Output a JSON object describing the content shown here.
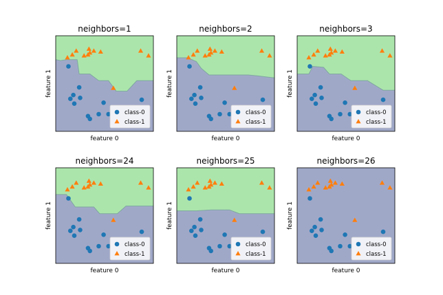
{
  "colors": {
    "class0_region": "#a0a8c8",
    "class1_region": "#ace5ac",
    "class0_marker": "#1f77b4",
    "class1_marker": "#ff7f0e",
    "boundary": "#7fa8a0",
    "axes_edge": "#000000"
  },
  "legend": {
    "class0_label": "class-0",
    "class1_label": "class-1"
  },
  "chart_data": [
    {
      "type": "scatter",
      "title": "neighbors=1",
      "xlabel": "feature 0",
      "ylabel": "feature 1",
      "xlim": [
        0,
        10
      ],
      "ylim": [
        0,
        10
      ],
      "boundary": [
        [
          0,
          7.5
        ],
        [
          0.5,
          7.4
        ],
        [
          1.1,
          7.5
        ],
        [
          2.2,
          7.5
        ],
        [
          2.4,
          6.0
        ],
        [
          3.5,
          6.0
        ],
        [
          4.4,
          5.3
        ],
        [
          5.4,
          5.3
        ],
        [
          6.2,
          4.2
        ],
        [
          7.3,
          4.2
        ],
        [
          8.3,
          5.3
        ],
        [
          10,
          5.3
        ]
      ],
      "series": [
        {
          "name": "class-0",
          "x": [
            1.3,
            1.5,
            1.8,
            1.9,
            2.4,
            2.5,
            3.3,
            3.5,
            4.4,
            4.9,
            5.4,
            8.8
          ],
          "y": [
            6.8,
            3.4,
            3.8,
            2.9,
            4.6,
            3.5,
            1.6,
            1.3,
            1.8,
            3.0,
            1.8,
            3.3
          ]
        },
        {
          "name": "class-1",
          "x": [
            1.2,
            1.7,
            2.1,
            2.9,
            3.3,
            3.4,
            3.5,
            3.9,
            4.6,
            5.9,
            8.7,
            9.5
          ],
          "y": [
            7.7,
            8.0,
            8.4,
            7.9,
            8.0,
            8.6,
            8.2,
            8.4,
            8.3,
            4.5,
            8.4,
            7.9
          ]
        }
      ]
    },
    {
      "type": "scatter",
      "title": "neighbors=2",
      "xlabel": "feature 0",
      "ylabel": "feature 1",
      "xlim": [
        0,
        10
      ],
      "ylim": [
        0,
        10
      ],
      "boundary": [
        [
          0,
          7.7
        ],
        [
          1.1,
          7.7
        ],
        [
          2.0,
          7.3
        ],
        [
          2.5,
          6.6
        ],
        [
          3.3,
          5.9
        ],
        [
          7.3,
          5.9
        ],
        [
          8.3,
          5.8
        ],
        [
          10,
          5.6
        ]
      ],
      "series": [
        {
          "name": "class-0",
          "x": [
            1.3,
            1.5,
            1.8,
            1.9,
            2.4,
            2.5,
            3.3,
            3.5,
            4.4,
            4.9,
            5.4,
            8.8
          ],
          "y": [
            6.8,
            3.4,
            3.8,
            2.9,
            4.6,
            3.5,
            1.6,
            1.3,
            1.8,
            3.0,
            1.8,
            3.3
          ]
        },
        {
          "name": "class-1",
          "x": [
            1.2,
            1.7,
            2.1,
            2.9,
            3.3,
            3.4,
            3.5,
            3.9,
            4.6,
            5.9,
            8.7,
            9.5
          ],
          "y": [
            7.7,
            8.0,
            8.4,
            7.9,
            8.0,
            8.6,
            8.2,
            8.4,
            8.3,
            4.5,
            8.4,
            7.9
          ]
        }
      ]
    },
    {
      "type": "scatter",
      "title": "neighbors=3",
      "xlabel": "feature 0",
      "ylabel": "feature 1",
      "xlim": [
        0,
        10
      ],
      "ylim": [
        0,
        10
      ],
      "boundary": [
        [
          0,
          6.0
        ],
        [
          1.2,
          6.0
        ],
        [
          1.6,
          6.8
        ],
        [
          2.7,
          6.7
        ],
        [
          3.3,
          6.0
        ],
        [
          4.5,
          6.0
        ],
        [
          5.5,
          5.3
        ],
        [
          7.2,
          5.3
        ],
        [
          8.8,
          4.3
        ],
        [
          10,
          4.3
        ]
      ],
      "series": [
        {
          "name": "class-0",
          "x": [
            1.3,
            1.5,
            1.8,
            1.9,
            2.4,
            2.5,
            3.3,
            3.5,
            4.4,
            4.9,
            5.4,
            8.8
          ],
          "y": [
            6.8,
            3.4,
            3.8,
            2.9,
            4.6,
            3.5,
            1.6,
            1.3,
            1.8,
            3.0,
            1.8,
            3.3
          ]
        },
        {
          "name": "class-1",
          "x": [
            1.2,
            1.7,
            2.1,
            2.9,
            3.3,
            3.4,
            3.5,
            3.9,
            4.6,
            5.9,
            8.7,
            9.5
          ],
          "y": [
            7.7,
            8.0,
            8.4,
            7.9,
            8.0,
            8.6,
            8.2,
            8.4,
            8.3,
            4.5,
            8.4,
            7.9
          ]
        }
      ]
    },
    {
      "type": "scatter",
      "title": "neighbors=24",
      "xlabel": "feature 0",
      "ylabel": "feature 1",
      "xlim": [
        0,
        10
      ],
      "ylim": [
        0,
        10
      ],
      "boundary": [
        [
          0,
          7.2
        ],
        [
          1.1,
          7.2
        ],
        [
          2.0,
          5.9
        ],
        [
          3.9,
          5.9
        ],
        [
          4.5,
          5.2
        ],
        [
          6.3,
          5.2
        ],
        [
          7.2,
          6.0
        ],
        [
          10,
          6.0
        ]
      ],
      "series": [
        {
          "name": "class-0",
          "x": [
            1.3,
            1.5,
            1.8,
            1.9,
            2.4,
            2.5,
            3.3,
            3.5,
            4.4,
            4.9,
            5.4,
            8.8
          ],
          "y": [
            6.8,
            3.4,
            3.8,
            2.9,
            4.6,
            3.5,
            1.6,
            1.3,
            1.8,
            3.0,
            1.8,
            3.3
          ]
        },
        {
          "name": "class-1",
          "x": [
            1.2,
            1.7,
            2.1,
            2.9,
            3.3,
            3.4,
            3.5,
            3.9,
            4.6,
            5.9,
            8.7,
            9.5
          ],
          "y": [
            7.7,
            8.0,
            8.4,
            7.9,
            8.0,
            8.6,
            8.2,
            8.4,
            8.3,
            4.5,
            8.4,
            7.9
          ]
        }
      ]
    },
    {
      "type": "scatter",
      "title": "neighbors=25",
      "xlabel": "feature 0",
      "ylabel": "feature 1",
      "xlim": [
        0,
        10
      ],
      "ylim": [
        0,
        10
      ],
      "boundary": [
        [
          0,
          5.5
        ],
        [
          2.0,
          5.5
        ],
        [
          3.5,
          5.6
        ],
        [
          5.4,
          5.6
        ],
        [
          6.4,
          5.2
        ],
        [
          10,
          5.2
        ]
      ],
      "series": [
        {
          "name": "class-0",
          "x": [
            1.3,
            1.5,
            1.8,
            1.9,
            2.4,
            2.5,
            3.3,
            3.5,
            4.4,
            4.9,
            5.4,
            8.8
          ],
          "y": [
            6.8,
            3.4,
            3.8,
            2.9,
            4.6,
            3.5,
            1.6,
            1.3,
            1.8,
            3.0,
            1.8,
            3.3
          ]
        },
        {
          "name": "class-1",
          "x": [
            1.2,
            1.7,
            2.1,
            2.9,
            3.3,
            3.4,
            3.5,
            3.9,
            4.6,
            5.9,
            8.7,
            9.5
          ],
          "y": [
            7.7,
            8.0,
            8.4,
            7.9,
            8.0,
            8.6,
            8.2,
            8.4,
            8.3,
            4.5,
            8.4,
            7.9
          ]
        }
      ]
    },
    {
      "type": "scatter",
      "title": "neighbors=26",
      "xlabel": "feature 0",
      "ylabel": "feature 1",
      "xlim": [
        0,
        10
      ],
      "ylim": [
        0,
        10
      ],
      "boundary": [],
      "series": [
        {
          "name": "class-0",
          "x": [
            1.3,
            1.5,
            1.8,
            1.9,
            2.4,
            2.5,
            3.3,
            3.5,
            4.4,
            4.9,
            5.4,
            8.8
          ],
          "y": [
            6.8,
            3.4,
            3.8,
            2.9,
            4.6,
            3.5,
            1.6,
            1.3,
            1.8,
            3.0,
            1.8,
            3.3
          ]
        },
        {
          "name": "class-1",
          "x": [
            1.2,
            1.7,
            2.1,
            2.9,
            3.3,
            3.4,
            3.5,
            3.9,
            4.6,
            5.9,
            8.7,
            9.5
          ],
          "y": [
            7.7,
            8.0,
            8.4,
            7.9,
            8.0,
            8.6,
            8.2,
            8.4,
            8.3,
            4.5,
            8.4,
            7.9
          ]
        }
      ]
    }
  ]
}
